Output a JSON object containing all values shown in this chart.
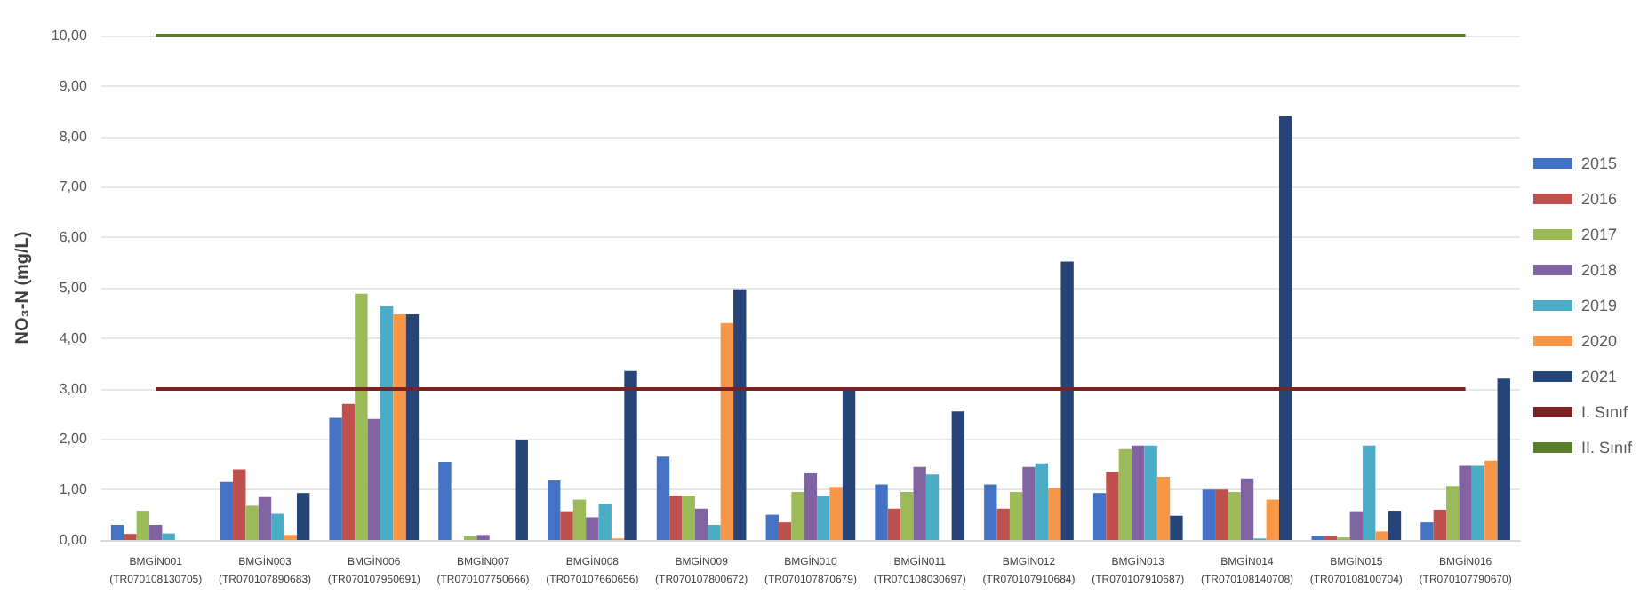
{
  "chart_data": {
    "type": "bar",
    "ylabel": "NO₃-N (mg/L)",
    "categories": [
      "BMGİN001\n(TR070108130705)",
      "BMGİN003\n(TR070107890683)",
      "BMGİN006\n(TR070107950691)",
      "BMGİN007\n(TR070107750666)",
      "BMGİN008\n(TR070107660656)",
      "BMGİN009\n(TR070107800672)",
      "BMGİN010\n(TR070107870679)",
      "BMGİN011\n(TR070108030697)",
      "BMGİN012\n(TR070107910684)",
      "BMGİN013\n(TR070107910687)",
      "BMGİN014\n(TR070108140708)",
      "BMGİN015\n(TR070108100704)",
      "BMGİN016\n(TR070107790670)"
    ],
    "series": [
      {
        "name": "2015",
        "color": "#4472c4",
        "values": [
          0.3,
          1.15,
          2.42,
          1.55,
          1.18,
          1.65,
          0.5,
          1.1,
          1.1,
          0.93,
          1.0,
          0.08,
          0.35
        ]
      },
      {
        "name": "2016",
        "color": "#c0504d",
        "values": [
          0.12,
          1.4,
          2.7,
          null,
          0.57,
          0.88,
          0.35,
          0.62,
          0.62,
          1.35,
          1.0,
          0.08,
          0.6
        ]
      },
      {
        "name": "2017",
        "color": "#9bbb59",
        "values": [
          0.58,
          0.68,
          4.88,
          0.07,
          0.8,
          0.88,
          0.95,
          0.95,
          0.95,
          1.8,
          0.95,
          0.05,
          1.07
        ]
      },
      {
        "name": "2018",
        "color": "#8064a2",
        "values": [
          0.3,
          0.85,
          2.4,
          0.1,
          0.45,
          0.62,
          1.32,
          1.45,
          1.45,
          1.87,
          1.22,
          0.57,
          1.47
        ]
      },
      {
        "name": "2019",
        "color": "#4bacc6",
        "values": [
          0.13,
          0.52,
          4.63,
          null,
          0.72,
          0.3,
          0.88,
          1.3,
          1.52,
          1.87,
          0.03,
          1.87,
          1.47
        ]
      },
      {
        "name": "2020",
        "color": "#f79646",
        "values": [
          null,
          0.1,
          4.47,
          null,
          0.03,
          4.3,
          1.05,
          null,
          1.03,
          1.25,
          0.8,
          0.17,
          1.57
        ]
      },
      {
        "name": "2021",
        "color": "#264478",
        "values": [
          null,
          0.93,
          4.47,
          1.98,
          3.35,
          4.97,
          3.0,
          2.55,
          5.52,
          0.48,
          8.4,
          0.58,
          3.2
        ]
      }
    ],
    "ref_lines": [
      {
        "axis": "y",
        "value": 3,
        "label": "I. Sınıf",
        "color": "#7b2323"
      },
      {
        "axis": "y",
        "value": 10,
        "label": "II. Sınıf",
        "color": "#5a7f2a"
      }
    ],
    "ylim": [
      0,
      10
    ],
    "yticks": [
      {
        "value": 0,
        "label": "0,00"
      },
      {
        "value": 1,
        "label": "1,00"
      },
      {
        "value": 2,
        "label": "2,00"
      },
      {
        "value": 3,
        "label": "3,00"
      },
      {
        "value": 4,
        "label": "4,00"
      },
      {
        "value": 5,
        "label": "5,00"
      },
      {
        "value": 6,
        "label": "6,00"
      },
      {
        "value": 7,
        "label": "7,00"
      },
      {
        "value": 8,
        "label": "8,00"
      },
      {
        "value": 9,
        "label": "9,00"
      },
      {
        "value": 10,
        "label": "10,00"
      }
    ],
    "grid": "y",
    "legend": "right"
  }
}
